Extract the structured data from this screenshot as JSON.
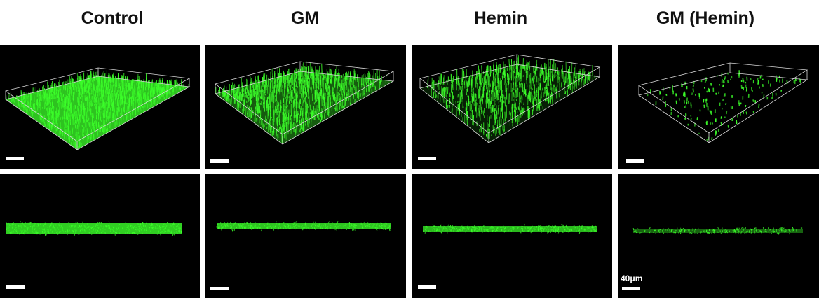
{
  "columns": [
    {
      "title": "Control"
    },
    {
      "title": "GM"
    },
    {
      "title": "Hemin"
    },
    {
      "title": "GM (Hemin)"
    }
  ],
  "scale_label": "40μm",
  "colors": {
    "fluorescence": "#3cff2a",
    "background": "#000000",
    "box": "#d8d8d8"
  }
}
